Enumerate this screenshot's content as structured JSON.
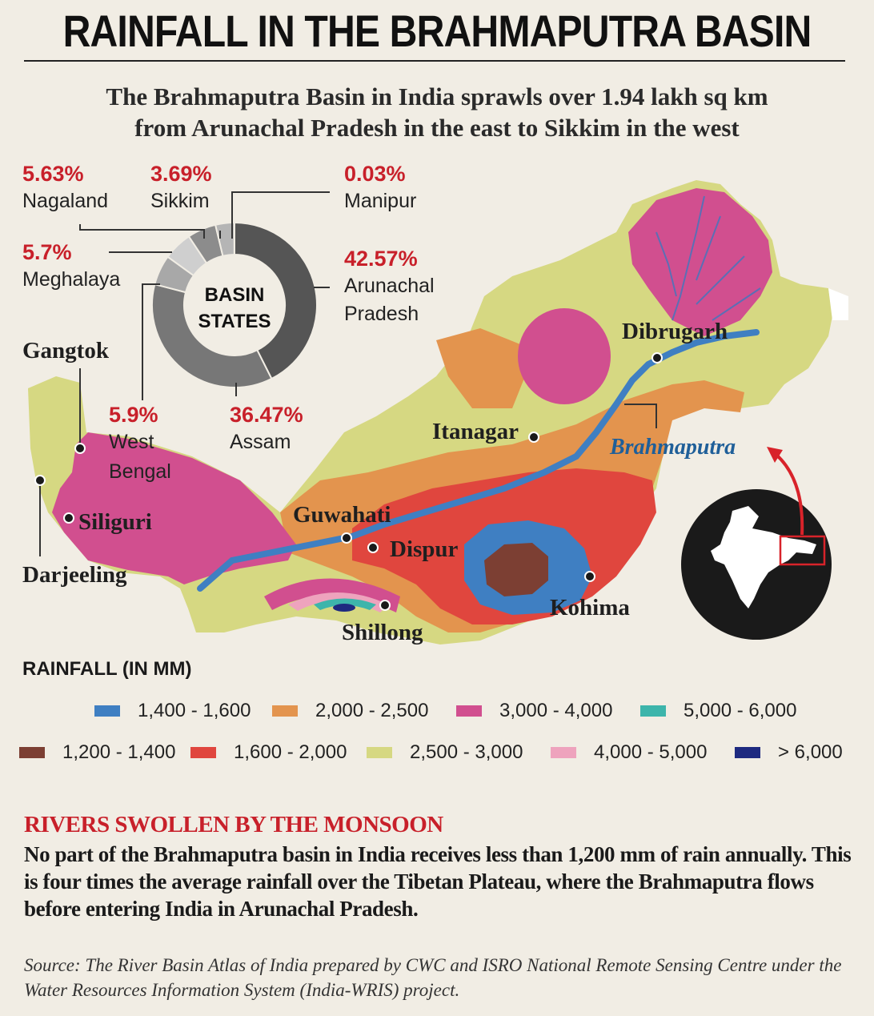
{
  "header": {
    "title": "RAINFALL IN THE BRAHMAPUTRA BASIN",
    "subtitle_line1": "The Brahmaputra Basin in India sprawls over 1.94 lakh sq km",
    "subtitle_line2": "from Arunachal Pradesh in the east to Sikkim in the west"
  },
  "basin_states": {
    "center_line1": "BASIN",
    "center_line2": "STATES",
    "states": [
      {
        "name": "Nagaland",
        "name_lines": [
          "Nagaland"
        ],
        "percent": "5.63%",
        "value": 5.63
      },
      {
        "name": "Sikkim",
        "name_lines": [
          "Sikkim"
        ],
        "percent": "3.69%",
        "value": 3.69
      },
      {
        "name": "Manipur",
        "name_lines": [
          "Manipur"
        ],
        "percent": "0.03%",
        "value": 0.03
      },
      {
        "name": "Meghalaya",
        "name_lines": [
          "Meghalaya"
        ],
        "percent": "5.7%",
        "value": 5.7
      },
      {
        "name": "Arunachal Pradesh",
        "name_lines": [
          "Arunachal",
          "Pradesh"
        ],
        "percent": "42.57%",
        "value": 42.57
      },
      {
        "name": "West Bengal",
        "name_lines": [
          "West",
          "Bengal"
        ],
        "percent": "5.9%",
        "value": 5.9
      },
      {
        "name": "Assam",
        "name_lines": [
          "Assam"
        ],
        "percent": "36.47%",
        "value": 36.47
      }
    ]
  },
  "map": {
    "cities": {
      "gangtok": "Gangtok",
      "darjeeling": "Darjeeling",
      "siliguri": "Siliguri",
      "guwahati": "Guwahati",
      "dispur": "Dispur",
      "shillong": "Shillong",
      "kohima": "Kohima",
      "itanagar": "Itanagar",
      "dibrugarh": "Dibrugarh"
    },
    "river_label": "Brahmaputra"
  },
  "legend": {
    "title": "RAINFALL (IN MM)",
    "items": [
      {
        "label": "1,400 - 1,600",
        "color": "#3f7fc2"
      },
      {
        "label": "2,000 - 2,500",
        "color": "#e3944e"
      },
      {
        "label": "3,000 - 4,000",
        "color": "#d14f8f"
      },
      {
        "label": "5,000 - 6,000",
        "color": "#3db5ab"
      },
      {
        "label": "1,200 - 1,400",
        "color": "#7c3f33"
      },
      {
        "label": "1,600 - 2,000",
        "color": "#e0463e"
      },
      {
        "label": "2,500 - 3,000",
        "color": "#d6d882"
      },
      {
        "label": "4,000 - 5,000",
        "color": "#eea3bd"
      },
      {
        "label": "> 6,000",
        "color": "#1e2a80"
      }
    ]
  },
  "article": {
    "section_title": "RIVERS SWOLLEN BY THE MONSOON",
    "body": "No part of the Brahmaputra basin in India receives less than 1,200 mm of rain annually. This is four times the average rainfall over the Tibetan Plateau, where the Brahmaputra flows before entering India in Arunachal Pradesh.",
    "source": "Source: The River Basin Atlas of India prepared by CWC and ISRO National Remote Sensing Centre under the Water Resources Information System (India-WRIS) project."
  }
}
